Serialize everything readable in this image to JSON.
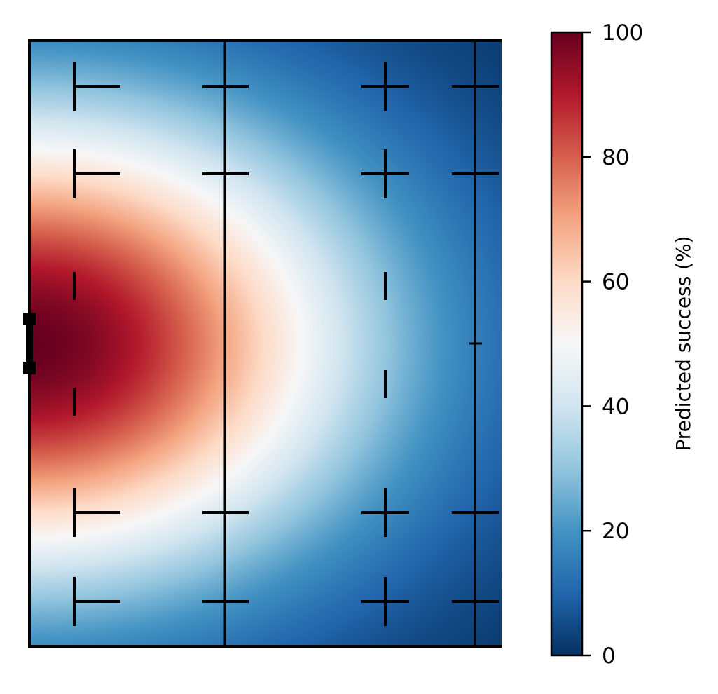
{
  "chart_data": {
    "type": "heatmap",
    "title": "",
    "xlabel": "",
    "ylabel": "",
    "description_of_field": "predicted success, max at goal mouth, decaying outward",
    "colormap": "RdBu_r",
    "colorbar": {
      "label": "Predicted success (%)",
      "min": 0,
      "max": 100,
      "ticks": [
        0,
        20,
        40,
        60,
        80,
        100
      ],
      "tick_labels": [
        "0",
        "20",
        "40",
        "60",
        "80",
        "100"
      ],
      "colors": [
        "#053061",
        "#2166ac",
        "#4393c3",
        "#92c5de",
        "#d1e5f0",
        "#f7f7f7",
        "#fddbc7",
        "#f4a582",
        "#d6604d",
        "#b2182b",
        "#67001f"
      ]
    },
    "field": {
      "x_range": [
        0,
        1
      ],
      "y_range": [
        0,
        1
      ],
      "peak_value": 100,
      "peak_location": [
        0.0,
        0.5
      ]
    }
  }
}
